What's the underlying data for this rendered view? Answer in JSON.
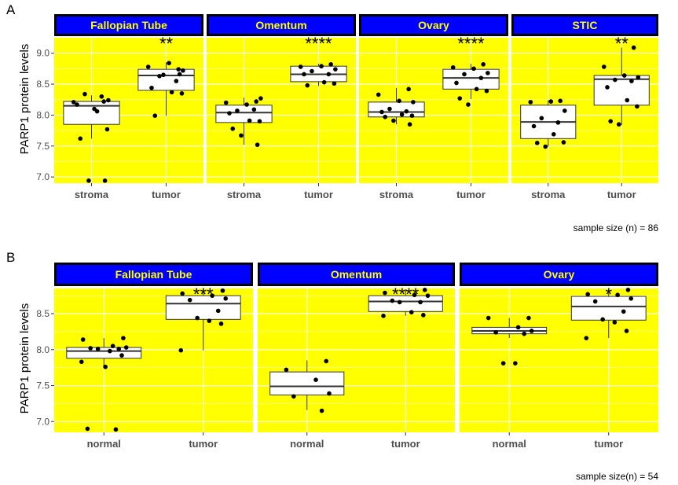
{
  "chart_data": [
    {
      "label": "A",
      "type": "box",
      "ylabel": "PARP1 protein levels",
      "caption": "sample size (n) = 86",
      "ylim": [
        6.9,
        9.25
      ],
      "yticks": [
        7.0,
        7.5,
        8.0,
        8.5,
        9.0
      ],
      "yticklabels": [
        "7.0",
        "7.5",
        "8.0",
        "8.5",
        "9.0"
      ],
      "categories": [
        "stroma",
        "tumor"
      ],
      "facets": [
        {
          "title": "Fallopian Tube",
          "significance": "**",
          "groups": [
            {
              "stats": [
                7.62,
                7.85,
                8.15,
                8.22,
                8.32
              ],
              "points": [
                8.22,
                8.21,
                8.1,
                8.24,
                8.34,
                8.3,
                8.17,
                8.06,
                7.77,
                7.62,
                6.94,
                6.94
              ]
            },
            {
              "stats": [
                7.99,
                8.4,
                8.64,
                8.74,
                8.85
              ],
              "points": [
                8.74,
                8.78,
                8.84,
                8.72,
                8.63,
                8.55,
                8.44,
                8.37,
                8.35,
                7.99,
                8.65,
                8.66
              ]
            }
          ]
        },
        {
          "title": "Omentum",
          "significance": "****",
          "groups": [
            {
              "stats": [
                7.52,
                7.88,
                8.04,
                8.16,
                8.28
              ],
              "points": [
                8.22,
                8.2,
                8.17,
                8.27,
                8.07,
                8.09,
                8.03,
                7.91,
                7.9,
                7.78,
                7.67,
                7.52
              ]
            },
            {
              "stats": [
                8.47,
                8.54,
                8.66,
                8.79,
                8.83
              ],
              "points": [
                8.82,
                8.78,
                8.79,
                8.74,
                8.71,
                8.66,
                8.66,
                8.53,
                8.51,
                8.48
              ]
            }
          ]
        },
        {
          "title": "Ovary",
          "significance": "****",
          "groups": [
            {
              "stats": [
                7.85,
                7.97,
                8.05,
                8.21,
                8.44
              ],
              "points": [
                8.42,
                8.33,
                8.23,
                8.21,
                8.1,
                8.06,
                8.05,
                8.01,
                7.99,
                7.97,
                7.91,
                7.85
              ]
            },
            {
              "stats": [
                8.26,
                8.42,
                8.6,
                8.74,
                8.83
              ],
              "points": [
                8.82,
                8.77,
                8.75,
                8.68,
                8.66,
                8.6,
                8.52,
                8.42,
                8.39,
                8.27,
                8.17
              ]
            }
          ]
        },
        {
          "title": "STIC",
          "significance": "**",
          "groups": [
            {
              "stats": [
                7.49,
                7.62,
                7.89,
                8.16,
                8.24
              ],
              "points": [
                8.23,
                8.21,
                8.22,
                8.07,
                7.95,
                7.88,
                7.82,
                7.69,
                7.56,
                7.55,
                7.49
              ]
            },
            {
              "stats": [
                7.84,
                8.16,
                8.58,
                8.64,
                9.09
              ],
              "points": [
                9.09,
                8.78,
                8.64,
                8.61,
                8.57,
                8.55,
                8.45,
                8.24,
                8.14,
                7.9,
                7.85
              ]
            }
          ]
        }
      ]
    },
    {
      "label": "B",
      "type": "box",
      "ylabel": "PARP1 protein levels",
      "caption": "sample size(n) = 54",
      "ylim": [
        6.85,
        8.85
      ],
      "yticks": [
        7.0,
        7.5,
        8.0,
        8.5
      ],
      "yticklabels": [
        "7.0",
        "7.5",
        "8.0",
        "8.5"
      ],
      "categories": [
        "normal",
        "tumor"
      ],
      "facets": [
        {
          "title": "Fallopian Tube",
          "significance": "***",
          "groups": [
            {
              "stats": [
                7.76,
                7.88,
                7.98,
                8.03,
                8.16
              ],
              "points": [
                8.16,
                8.14,
                8.05,
                8.03,
                8.02,
                8.01,
                8.01,
                7.98,
                7.92,
                7.83,
                7.76,
                6.9,
                6.89
              ]
            },
            {
              "stats": [
                7.99,
                8.42,
                8.64,
                8.75,
                8.85
              ],
              "points": [
                8.82,
                8.78,
                8.75,
                8.71,
                8.69,
                8.54,
                8.44,
                8.4,
                8.36,
                7.99
              ]
            }
          ]
        },
        {
          "title": "Omentum",
          "significance": "****",
          "groups": [
            {
              "stats": [
                7.16,
                7.37,
                7.49,
                7.69,
                7.85
              ],
              "points": [
                7.84,
                7.72,
                7.58,
                7.39,
                7.35,
                7.15
              ]
            },
            {
              "stats": [
                8.47,
                8.53,
                8.67,
                8.75,
                8.84
              ],
              "points": [
                8.83,
                8.79,
                8.76,
                8.75,
                8.68,
                8.66,
                8.66,
                8.52,
                8.48,
                8.47
              ]
            }
          ]
        },
        {
          "title": "Ovary",
          "significance": "*",
          "groups": [
            {
              "stats": [
                8.16,
                8.22,
                8.26,
                8.31,
                8.44
              ],
              "points": [
                8.44,
                8.44,
                8.31,
                8.26,
                8.24,
                8.22,
                7.81,
                7.81
              ]
            },
            {
              "stats": [
                8.16,
                8.41,
                8.6,
                8.74,
                8.83
              ],
              "points": [
                8.83,
                8.77,
                8.76,
                8.71,
                8.67,
                8.53,
                8.42,
                8.38,
                8.26,
                8.16
              ]
            }
          ]
        }
      ]
    }
  ]
}
